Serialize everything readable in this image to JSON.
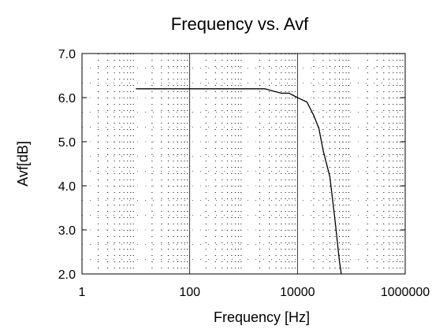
{
  "chart_data": {
    "type": "line",
    "title": "Frequency vs. Avf",
    "xlabel": "Frequency [Hz]",
    "ylabel": "Avf[dB]",
    "x_scale": "log",
    "xlim": [
      1,
      1000000
    ],
    "ylim": [
      2.0,
      7.0
    ],
    "x_ticks": [
      1,
      100,
      10000,
      1000000
    ],
    "x_tick_labels": [
      "1",
      "100",
      "10000",
      "1000000"
    ],
    "y_ticks": [
      2.0,
      3.0,
      4.0,
      5.0,
      6.0,
      7.0
    ],
    "y_tick_labels": [
      "2.0",
      "3.0",
      "4.0",
      "5.0",
      "6.0",
      "7.0"
    ],
    "grid": true,
    "legend": "none",
    "line_color": "#000000",
    "series": [
      {
        "x": [
          10,
          100,
          1000,
          2500,
          3500,
          5000,
          7000,
          10000,
          15000,
          20000,
          25000,
          30000,
          40000,
          50000,
          60000,
          65000
        ],
        "y": [
          6.2,
          6.2,
          6.2,
          6.2,
          6.15,
          6.1,
          6.1,
          6.0,
          5.9,
          5.6,
          5.3,
          4.8,
          4.2,
          3.2,
          2.3,
          2.0
        ]
      }
    ]
  }
}
